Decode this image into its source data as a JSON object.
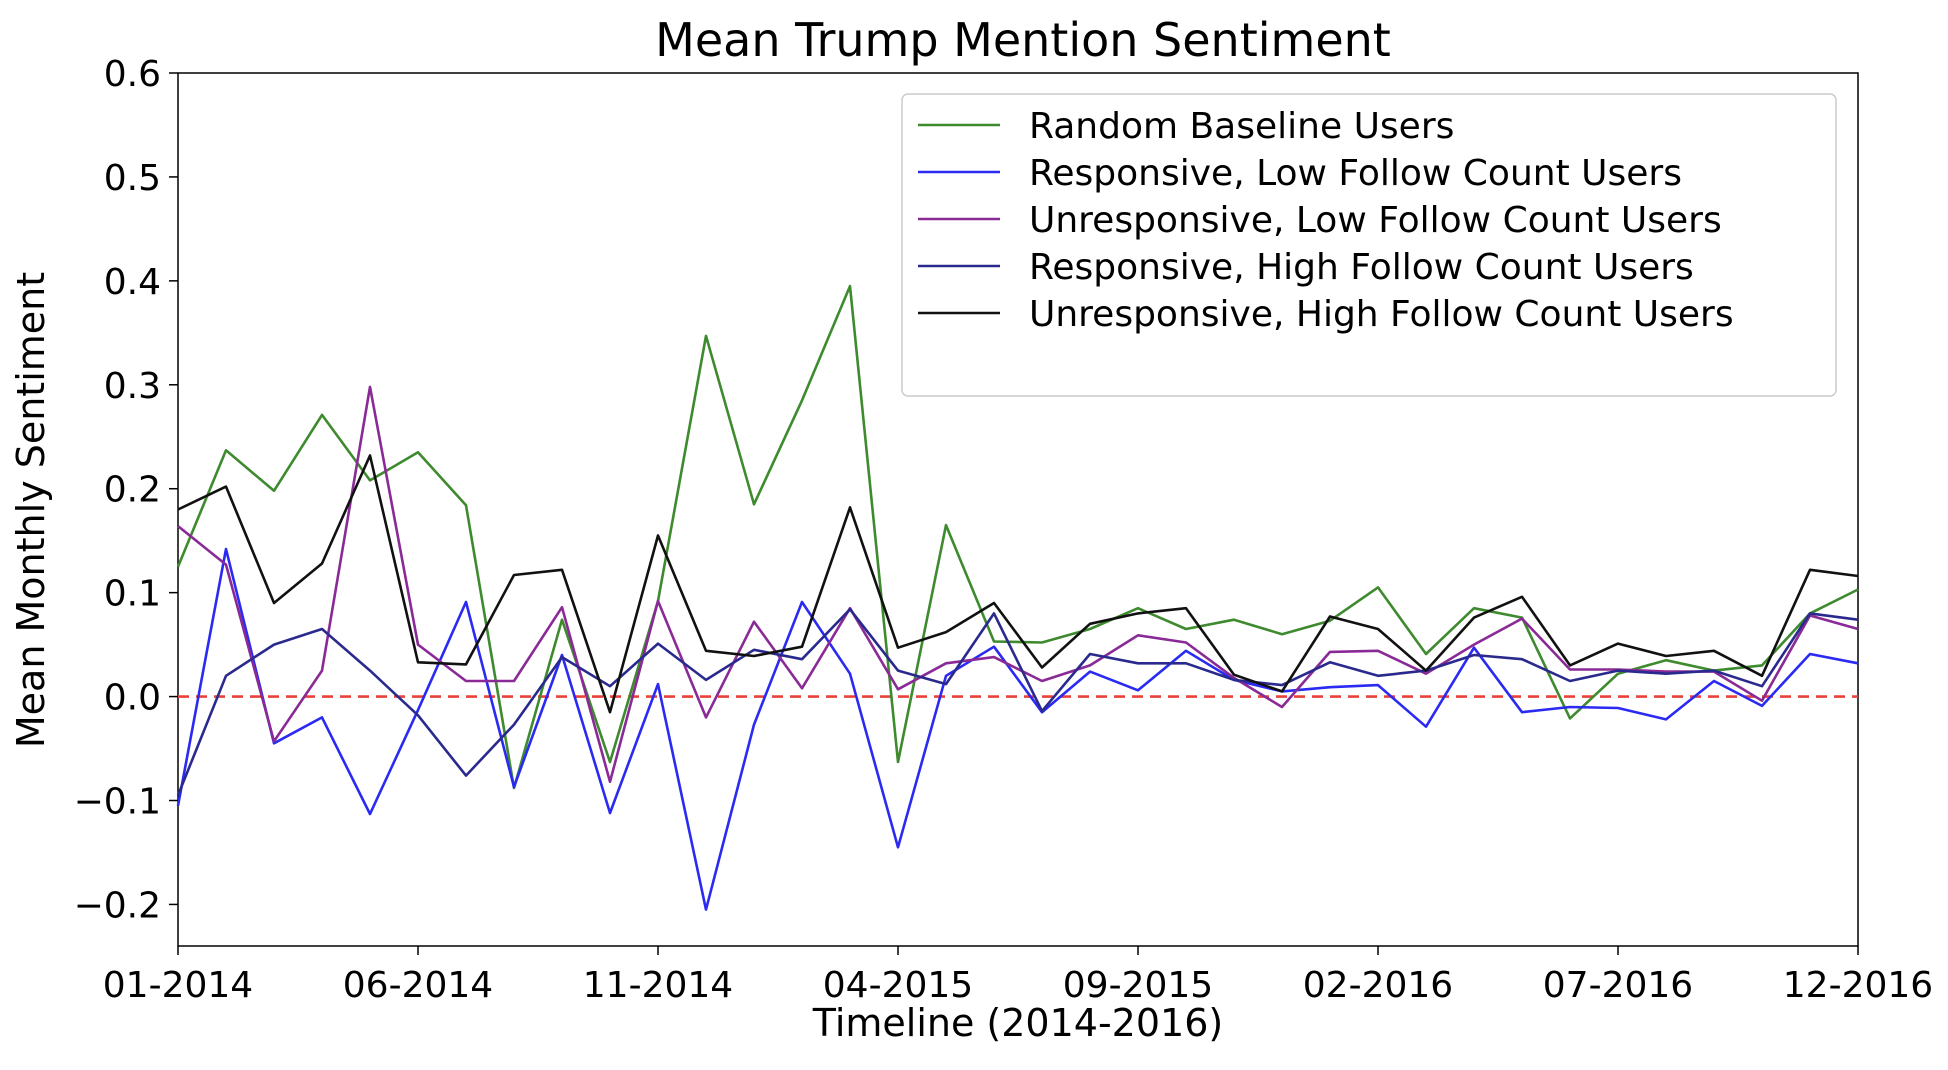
{
  "chart_data": {
    "type": "line",
    "title": "Mean Trump Mention Sentiment",
    "xlabel": "Timeline (2014-2016)",
    "ylabel": "Mean Monthly Sentiment",
    "ylim": [
      -0.24,
      0.6
    ],
    "xlim": [
      0,
      35
    ],
    "yticks": [
      -0.2,
      -0.1,
      0.0,
      0.1,
      0.2,
      0.3,
      0.4,
      0.5,
      0.6
    ],
    "ytick_labels": [
      "−0.2",
      "−0.1",
      "0.0",
      "0.1",
      "0.2",
      "0.3",
      "0.4",
      "0.5",
      "0.6"
    ],
    "xticks": [
      0,
      5,
      10,
      15,
      20,
      25,
      30,
      35
    ],
    "xtick_labels": [
      "01-2014",
      "06-2014",
      "11-2014",
      "04-2015",
      "09-2015",
      "02-2016",
      "07-2016",
      "12-2016"
    ],
    "x": [
      0,
      1,
      2,
      3,
      4,
      5,
      6,
      7,
      8,
      9,
      10,
      11,
      12,
      13,
      14,
      15,
      16,
      17,
      18,
      19,
      20,
      21,
      22,
      23,
      24,
      25,
      26,
      27,
      28,
      29,
      30,
      31,
      32,
      33,
      34,
      35
    ],
    "reference_line": {
      "y": 0.0,
      "color": "#e8423a",
      "style": "dashed"
    },
    "legend_position": "top-right",
    "series": [
      {
        "name": "Random Baseline Users",
        "color": "#3e8a2e",
        "values": [
          0.125,
          0.237,
          0.198,
          0.271,
          0.208,
          0.235,
          0.184,
          -0.088,
          0.074,
          -0.063,
          0.092,
          0.347,
          0.185,
          0.285,
          0.395,
          -0.063,
          0.165,
          0.053,
          0.052,
          0.065,
          0.085,
          0.065,
          0.074,
          0.06,
          0.073,
          0.105,
          0.041,
          0.085,
          0.076,
          -0.021,
          0.022,
          0.035,
          0.025,
          0.03,
          0.08,
          0.103
        ]
      },
      {
        "name": "Responsive, Low Follow Count Users",
        "color": "#2a2af2",
        "values": [
          -0.105,
          0.142,
          -0.045,
          -0.02,
          -0.113,
          -0.013,
          0.091,
          -0.087,
          0.04,
          -0.112,
          0.012,
          -0.205,
          -0.027,
          0.091,
          0.022,
          -0.145,
          0.02,
          0.048,
          -0.015,
          0.024,
          0.006,
          0.044,
          0.016,
          0.005,
          0.009,
          0.011,
          -0.029,
          0.047,
          -0.015,
          -0.01,
          -0.011,
          -0.022,
          0.015,
          -0.009,
          0.041,
          0.032
        ]
      },
      {
        "name": "Unresponsive, Low Follow Count Users",
        "color": "#8a2a96",
        "values": [
          0.164,
          0.127,
          -0.043,
          0.025,
          0.298,
          0.05,
          0.015,
          0.015,
          0.086,
          -0.082,
          0.092,
          -0.02,
          0.072,
          0.008,
          0.085,
          0.007,
          0.032,
          0.038,
          0.015,
          0.03,
          0.059,
          0.052,
          0.018,
          -0.01,
          0.043,
          0.044,
          0.022,
          0.05,
          0.075,
          0.026,
          0.026,
          0.024,
          0.024,
          -0.004,
          0.078,
          0.065
        ]
      },
      {
        "name": "Responsive, High Follow Count Users",
        "color": "#2a2a8e",
        "values": [
          -0.095,
          0.02,
          0.05,
          0.065,
          0.025,
          -0.018,
          -0.076,
          -0.027,
          0.038,
          0.01,
          0.051,
          0.016,
          0.045,
          0.036,
          0.084,
          0.025,
          0.012,
          0.08,
          -0.014,
          0.041,
          0.032,
          0.032,
          0.016,
          0.011,
          0.033,
          0.02,
          0.025,
          0.04,
          0.036,
          0.015,
          0.025,
          0.022,
          0.025,
          0.01,
          0.08,
          0.074
        ]
      },
      {
        "name": "Unresponsive, High Follow Count Users",
        "color": "#111111",
        "values": [
          0.18,
          0.202,
          0.09,
          0.128,
          0.232,
          0.033,
          0.031,
          0.117,
          0.122,
          -0.015,
          0.155,
          0.044,
          0.039,
          0.048,
          0.182,
          0.047,
          0.062,
          0.09,
          0.028,
          0.07,
          0.08,
          0.085,
          0.021,
          0.005,
          0.077,
          0.065,
          0.025,
          0.076,
          0.096,
          0.03,
          0.051,
          0.039,
          0.044,
          0.02,
          0.122,
          0.116
        ]
      }
    ]
  }
}
